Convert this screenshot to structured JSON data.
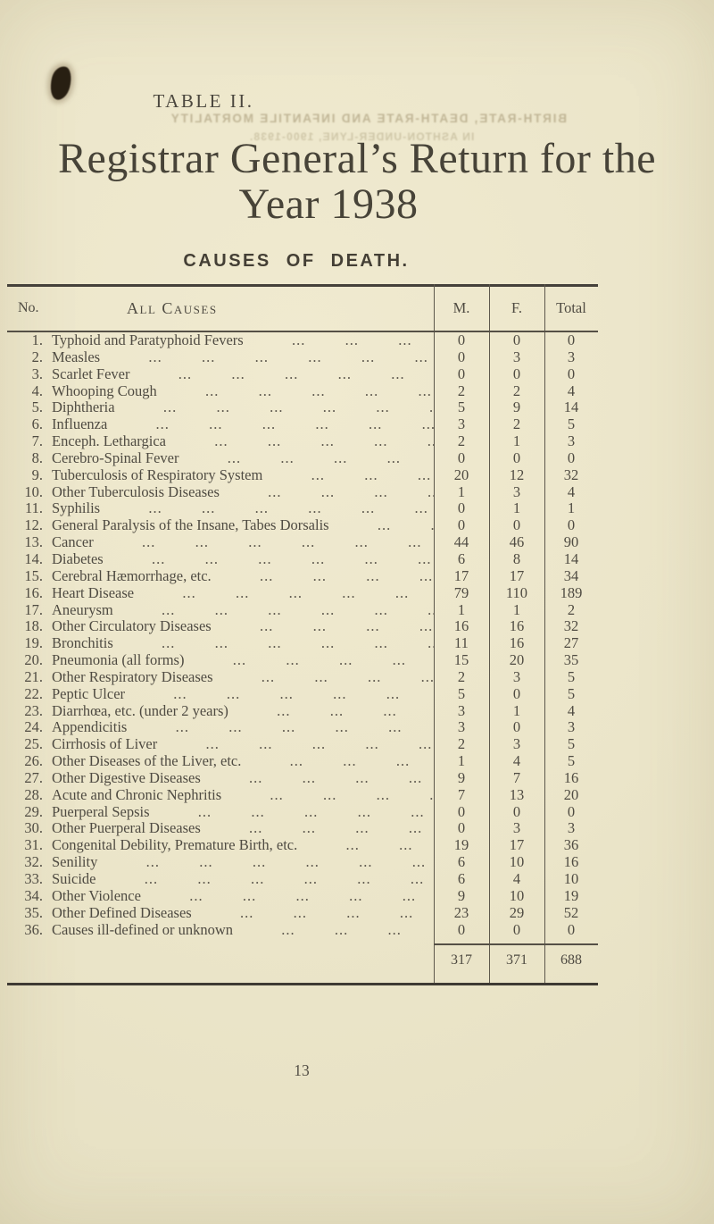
{
  "document": {
    "table_label": "TABLE II.",
    "title_line1": "Registrar General’s Return for the",
    "title_line2": "Year 1938",
    "subtitle": "CAUSES OF DEATH.",
    "page_number": "13",
    "bleed_through_line1": "BIRTH-RATE, DEATH-RATE AND INFANTILE MORTALITY",
    "bleed_through_line2": "IN ASHTON-UNDER-LYNE, 1900-1938."
  },
  "table": {
    "headers": {
      "no": "No.",
      "cause": "All Causes",
      "male": "M.",
      "female": "F.",
      "total": "Total"
    },
    "rows": [
      {
        "no": "1.",
        "cause": "Typhoid and Paratyphoid Fevers",
        "m": "0",
        "f": "0",
        "total": "0"
      },
      {
        "no": "2.",
        "cause": "Measles",
        "m": "0",
        "f": "3",
        "total": "3"
      },
      {
        "no": "3.",
        "cause": "Scarlet Fever",
        "m": "0",
        "f": "0",
        "total": "0"
      },
      {
        "no": "4.",
        "cause": "Whooping Cough",
        "m": "2",
        "f": "2",
        "total": "4"
      },
      {
        "no": "5.",
        "cause": "Diphtheria",
        "m": "5",
        "f": "9",
        "total": "14"
      },
      {
        "no": "6.",
        "cause": "Influenza",
        "m": "3",
        "f": "2",
        "total": "5"
      },
      {
        "no": "7.",
        "cause": "Enceph. Lethargica",
        "m": "2",
        "f": "1",
        "total": "3"
      },
      {
        "no": "8.",
        "cause": "Cerebro-Spinal Fever",
        "m": "0",
        "f": "0",
        "total": "0"
      },
      {
        "no": "9.",
        "cause": "Tuberculosis of Respiratory System",
        "m": "20",
        "f": "12",
        "total": "32"
      },
      {
        "no": "10.",
        "cause": "Other Tuberculosis Diseases",
        "m": "1",
        "f": "3",
        "total": "4"
      },
      {
        "no": "11.",
        "cause": "Syphilis",
        "m": "0",
        "f": "1",
        "total": "1"
      },
      {
        "no": "12.",
        "cause": "General Paralysis of the Insane, Tabes Dorsalis",
        "m": "0",
        "f": "0",
        "total": "0"
      },
      {
        "no": "13.",
        "cause": "Cancer",
        "m": "44",
        "f": "46",
        "total": "90"
      },
      {
        "no": "14.",
        "cause": "Diabetes",
        "m": "6",
        "f": "8",
        "total": "14"
      },
      {
        "no": "15.",
        "cause": "Cerebral Hæmorrhage, etc.",
        "m": "17",
        "f": "17",
        "total": "34"
      },
      {
        "no": "16.",
        "cause": "Heart Disease",
        "m": "79",
        "f": "110",
        "total": "189"
      },
      {
        "no": "17.",
        "cause": "Aneurysm",
        "m": "1",
        "f": "1",
        "total": "2"
      },
      {
        "no": "18.",
        "cause": "Other Circulatory Diseases",
        "m": "16",
        "f": "16",
        "total": "32"
      },
      {
        "no": "19.",
        "cause": "Bronchitis",
        "m": "11",
        "f": "16",
        "total": "27"
      },
      {
        "no": "20.",
        "cause": "Pneumonia (all forms)",
        "m": "15",
        "f": "20",
        "total": "35"
      },
      {
        "no": "21.",
        "cause": "Other Respiratory Diseases",
        "m": "2",
        "f": "3",
        "total": "5"
      },
      {
        "no": "22.",
        "cause": "Peptic Ulcer",
        "m": "5",
        "f": "0",
        "total": "5"
      },
      {
        "no": "23.",
        "cause": "Diarrhœa, etc. (under 2 years)",
        "m": "3",
        "f": "1",
        "total": "4"
      },
      {
        "no": "24.",
        "cause": "Appendicitis",
        "m": "3",
        "f": "0",
        "total": "3"
      },
      {
        "no": "25.",
        "cause": "Cirrhosis of Liver",
        "m": "2",
        "f": "3",
        "total": "5"
      },
      {
        "no": "26.",
        "cause": "Other Diseases of the Liver, etc.",
        "m": "1",
        "f": "4",
        "total": "5"
      },
      {
        "no": "27.",
        "cause": "Other Digestive Diseases",
        "m": "9",
        "f": "7",
        "total": "16"
      },
      {
        "no": "28.",
        "cause": "Acute and Chronic Nephritis",
        "m": "7",
        "f": "13",
        "total": "20"
      },
      {
        "no": "29.",
        "cause": "Puerperal Sepsis",
        "m": "0",
        "f": "0",
        "total": "0"
      },
      {
        "no": "30.",
        "cause": "Other Puerperal Diseases",
        "m": "0",
        "f": "3",
        "total": "3"
      },
      {
        "no": "31.",
        "cause": "Congenital Debility, Premature Birth, etc.",
        "m": "19",
        "f": "17",
        "total": "36"
      },
      {
        "no": "32.",
        "cause": "Senility",
        "m": "6",
        "f": "10",
        "total": "16"
      },
      {
        "no": "33.",
        "cause": "Suicide",
        "m": "6",
        "f": "4",
        "total": "10"
      },
      {
        "no": "34.",
        "cause": "Other Violence",
        "m": "9",
        "f": "10",
        "total": "19"
      },
      {
        "no": "35.",
        "cause": "Other Defined Diseases",
        "m": "23",
        "f": "29",
        "total": "52"
      },
      {
        "no": "36.",
        "cause": "Causes ill-defined or unknown",
        "m": "0",
        "f": "0",
        "total": "0"
      }
    ],
    "totals": {
      "male": "317",
      "female": "371",
      "total": "688"
    }
  },
  "colors": {
    "paper": "#ebe5c9",
    "ink": "#4f4b42",
    "rule": "#555046",
    "ink_blot": "#16120d"
  }
}
